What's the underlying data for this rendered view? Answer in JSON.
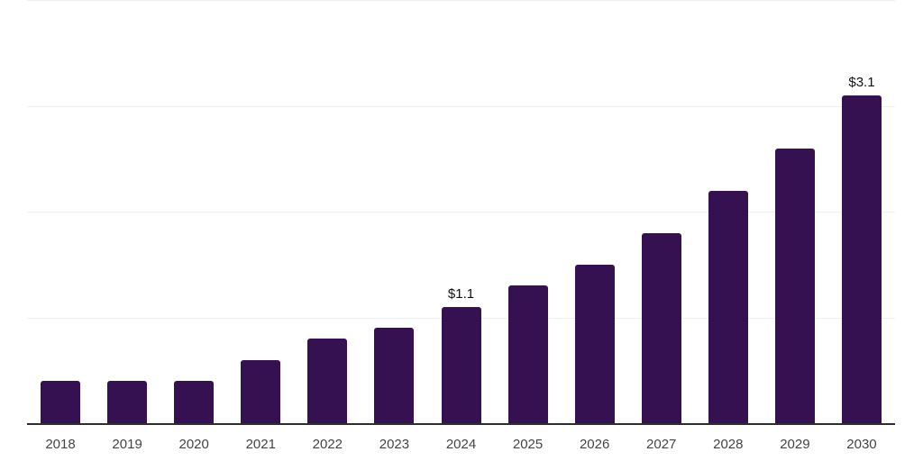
{
  "chart_data": {
    "type": "bar",
    "title": "",
    "categories": [
      "2018",
      "2019",
      "2020",
      "2021",
      "2022",
      "2023",
      "2024",
      "2025",
      "2026",
      "2027",
      "2028",
      "2029",
      "2030"
    ],
    "values": [
      0.4,
      0.4,
      0.4,
      0.6,
      0.8,
      0.9,
      1.1,
      1.3,
      1.5,
      1.8,
      2.2,
      2.6,
      3.1
    ],
    "value_labels": {
      "2024": "$1.1",
      "2030": "$3.1"
    },
    "xlabel": "",
    "ylabel": "",
    "ylim": [
      0,
      4
    ],
    "gridline_values": [
      1,
      2,
      3,
      4
    ],
    "grid": "horizontal",
    "legend": "none",
    "colors": {
      "bar": "#351151",
      "axis_line": "#2e2e2e",
      "gridline": "#f0f0f0",
      "value_label": "#111111",
      "tick_label": "#444444",
      "background": "#ffffff"
    }
  }
}
